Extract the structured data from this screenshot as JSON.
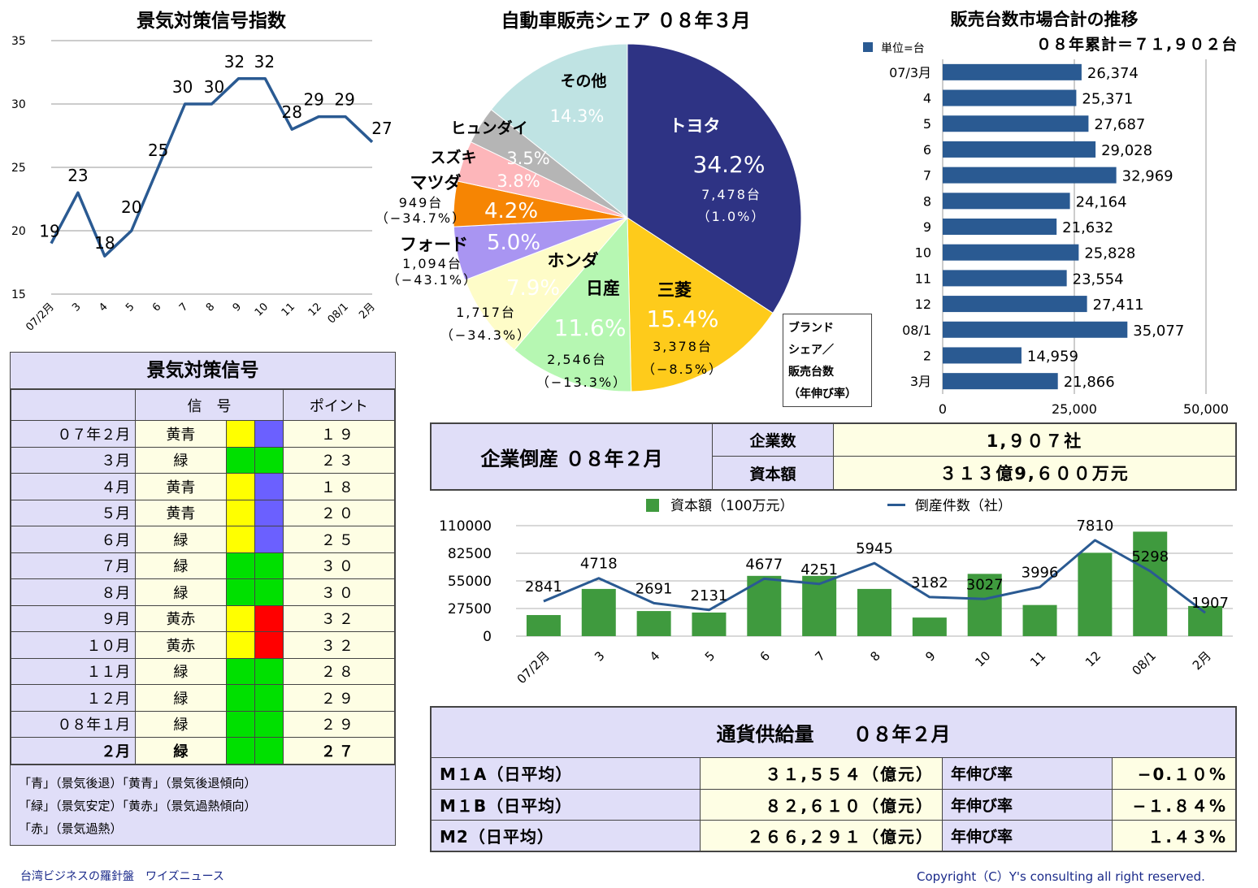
{
  "signal_chart": {
    "title": "景気対策信号指数",
    "chart_data": {
      "type": "line",
      "categories": [
        "07/2月",
        "3",
        "4",
        "5",
        "6",
        "7",
        "8",
        "9",
        "10",
        "11",
        "12",
        "08/1",
        "2月"
      ],
      "values": [
        19,
        23,
        18,
        20,
        25,
        30,
        30,
        32,
        32,
        28,
        29,
        29,
        27
      ],
      "ylim": [
        15,
        35
      ],
      "yticks": [
        15,
        20,
        25,
        30,
        35
      ],
      "grid": true,
      "color": "#2a5a92"
    }
  },
  "pie_chart": {
    "title": "自動車販売シェア ０８年３月",
    "legend_box": "ブランド\nシェア／\n販売台数\n（年伸び率）",
    "chart_data": {
      "type": "pie",
      "slices": [
        {
          "name": "トヨタ",
          "value": 34.2,
          "pct": "34.2%",
          "units": "7,478台",
          "growth": "（1.0%）",
          "color": "#2e3384"
        },
        {
          "name": "三菱",
          "value": 15.4,
          "pct": "15.4%",
          "units": "3,378台",
          "growth": "（−8.5%）",
          "color": "#fecb1b"
        },
        {
          "name": "日産",
          "value": 11.6,
          "pct": "11.6%",
          "units": "2,546台",
          "growth": "（−13.3%）",
          "color": "#b6f7b2"
        },
        {
          "name": "ホンダ",
          "value": 7.9,
          "pct": "7.9%",
          "units": "1,717台",
          "growth": "（−34.3%）",
          "color": "#fefcc8"
        },
        {
          "name": "フォード",
          "value": 5.0,
          "pct": "5.0%",
          "units": "1,094台",
          "growth": "（−43.1%）",
          "color": "#a995f2"
        },
        {
          "name": "マツダ",
          "value": 4.2,
          "pct": "4.2%",
          "units": "949台",
          "growth": "（−34.7%）",
          "color": "#f68503"
        },
        {
          "name": "スズキ",
          "value": 3.8,
          "pct": "3.8%",
          "units": "",
          "growth": "",
          "color": "#fdb6ba"
        },
        {
          "name": "ヒュンダイ",
          "value": 3.5,
          "pct": "3.5%",
          "units": "",
          "growth": "",
          "color": "#b5b5b5"
        },
        {
          "name": "その他",
          "value": 14.3,
          "pct": "14.3%",
          "units": "",
          "growth": "",
          "color": "#bfe3e3"
        }
      ]
    }
  },
  "sales_chart": {
    "title": "販売台数市場合計の推移",
    "unit_legend": "単位=台",
    "cumulative": "０８年累計＝７１,９０２台",
    "chart_data": {
      "type": "bar",
      "orientation": "horizontal",
      "categories": [
        "07/3月",
        "4",
        "5",
        "6",
        "7",
        "8",
        "9",
        "10",
        "11",
        "12",
        "08/1",
        "2",
        "3月"
      ],
      "values": [
        26374,
        25371,
        27687,
        29028,
        32969,
        24164,
        21632,
        25828,
        23554,
        27411,
        35077,
        14959,
        21866
      ],
      "value_labels": [
        "26,374",
        "25,371",
        "27,687",
        "29,028",
        "32,969",
        "24,164",
        "21,632",
        "25,828",
        "23,554",
        "27,411",
        "35,077",
        "14,959",
        "21,866"
      ],
      "xlim": [
        0,
        50000
      ],
      "xticks": [
        "0",
        "25,000",
        "50,000"
      ],
      "color": "#2a5a92"
    }
  },
  "signal_table": {
    "title": "景気対策信号",
    "col_signal": "信　号",
    "col_point": "ポイント",
    "rows": [
      {
        "label": "０７年２月",
        "name": "黄青",
        "point": "１９",
        "c1": "#ffff00",
        "c2": "#6b60ff",
        "bold": false
      },
      {
        "label": "３月",
        "name": "緑",
        "point": "２３",
        "c1": "#00e000",
        "c2": "#00e000",
        "bold": false
      },
      {
        "label": "４月",
        "name": "黄青",
        "point": "１８",
        "c1": "#ffff00",
        "c2": "#6b60ff",
        "bold": false
      },
      {
        "label": "５月",
        "name": "黄青",
        "point": "２０",
        "c1": "#ffff00",
        "c2": "#6b60ff",
        "bold": false
      },
      {
        "label": "６月",
        "name": "緑",
        "point": "２５",
        "c1": "#ffff00",
        "c2": "#6b60ff",
        "bold": false
      },
      {
        "label": "７月",
        "name": "緑",
        "point": "３０",
        "c1": "#00e000",
        "c2": "#00e000",
        "bold": false
      },
      {
        "label": "８月",
        "name": "緑",
        "point": "３０",
        "c1": "#00e000",
        "c2": "#00e000",
        "bold": false
      },
      {
        "label": "９月",
        "name": "黄赤",
        "point": "３２",
        "c1": "#ffff00",
        "c2": "#ff0000",
        "bold": false
      },
      {
        "label": "１０月",
        "name": "黄赤",
        "point": "３２",
        "c1": "#ffff00",
        "c2": "#ff0000",
        "bold": false
      },
      {
        "label": "１１月",
        "name": "緑",
        "point": "２８",
        "c1": "#00e000",
        "c2": "#00e000",
        "bold": false
      },
      {
        "label": "１２月",
        "name": "緑",
        "point": "２９",
        "c1": "#00e000",
        "c2": "#00e000",
        "bold": false
      },
      {
        "label": "０８年１月",
        "name": "緑",
        "point": "２９",
        "c1": "#00e000",
        "c2": "#00e000",
        "bold": false
      },
      {
        "label": "２月",
        "name": "緑",
        "point": "２７",
        "c1": "#00e000",
        "c2": "#00e000",
        "bold": true
      }
    ],
    "legend_lines": [
      "「青」（景気後退）「黄青」（景気後退傾向）",
      "「緑」（景気安定）「黄赤」（景気過熱傾向）",
      "「赤」（景気過熱）"
    ]
  },
  "bankruptcy": {
    "title": "企業倒産 ０８年２月",
    "count_label": "企業数",
    "count_value": "1,９０７社",
    "capital_label": "資本額",
    "capital_value": "３１３億9,６００万元"
  },
  "bankruptcy_chart": {
    "legend_bar": "資本額（100万元）",
    "legend_line": "倒産件数（社）",
    "chart_data": {
      "type": "bar+line",
      "categories": [
        "07/2月",
        "3",
        "4",
        "5",
        "6",
        "7",
        "8",
        "9",
        "10",
        "11",
        "12",
        "08/1",
        "2月"
      ],
      "series": [
        {
          "name": "資本額（100万元）",
          "type": "bar",
          "values": [
            21000,
            47000,
            25000,
            23500,
            60000,
            60000,
            47000,
            18500,
            62000,
            31000,
            83000,
            104000,
            30000
          ],
          "color": "#3f9a3e"
        },
        {
          "name": "倒産件数（社）",
          "type": "line",
          "values": [
            2841,
            4718,
            2691,
            2131,
            4677,
            4251,
            5945,
            3182,
            3027,
            3996,
            7810,
            5298,
            1907
          ],
          "color": "#2a5a92"
        }
      ],
      "ylim": [
        0,
        110000
      ],
      "yticks": [
        "0",
        "27500",
        "55000",
        "82500",
        "110000"
      ],
      "ylim_line": [
        0,
        9000
      ]
    }
  },
  "money": {
    "title": "通貨供給量　　０８年２月",
    "growth_label": "年伸び率",
    "rows": [
      {
        "name": "M１A（日平均）",
        "value": "３１,５５４（億元）",
        "rate": "−0.１０%"
      },
      {
        "name": "M１B（日平均）",
        "value": "８２,６１０（億元）",
        "rate": "−１.８４%"
      },
      {
        "name": "M2（日平均）",
        "value": "２６６,２９１（億元）",
        "rate": "１.４３%"
      }
    ]
  },
  "footer": {
    "left": "台湾ビジネスの羅針盤　ワイズニュース",
    "right": "Copyright（C）Y's consulting all right reserved.",
    "color": "#1a2a8a"
  }
}
